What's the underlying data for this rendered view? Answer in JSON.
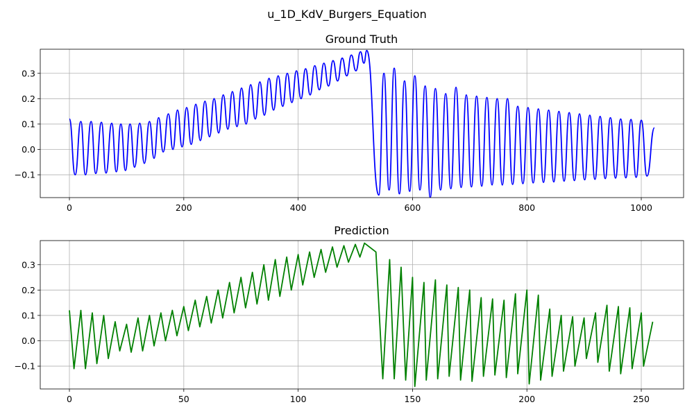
{
  "figure": {
    "title": "u_1D_KdV_Burgers_Equation",
    "background": "#ffffff"
  },
  "chart_data": [
    {
      "type": "line",
      "title": "Ground Truth",
      "xlabel": "",
      "ylabel": "",
      "xlim": [
        -51,
        1074
      ],
      "ylim": [
        -0.19,
        0.395
      ],
      "xticks": [
        0,
        200,
        400,
        600,
        800,
        1000
      ],
      "yticks": [
        -0.1,
        0.0,
        0.1,
        0.2,
        0.3
      ],
      "grid": true,
      "series": [
        {
          "color": "#0000ff",
          "x_start": 0,
          "x_end": 1023,
          "peaks": [
            [
              0,
              0.12
            ],
            [
              20,
              0.11
            ],
            [
              38,
              0.11
            ],
            [
              56,
              0.107
            ],
            [
              74,
              0.103
            ],
            [
              90,
              0.1
            ],
            [
              106,
              0.1
            ],
            [
              123,
              0.103
            ],
            [
              140,
              0.11
            ],
            [
              156,
              0.125
            ],
            [
              173,
              0.14
            ],
            [
              189,
              0.155
            ],
            [
              205,
              0.165
            ],
            [
              221,
              0.178
            ],
            [
              237,
              0.19
            ],
            [
              253,
              0.2
            ],
            [
              269,
              0.215
            ],
            [
              285,
              0.228
            ],
            [
              301,
              0.242
            ],
            [
              317,
              0.255
            ],
            [
              333,
              0.266
            ],
            [
              349,
              0.28
            ],
            [
              365,
              0.29
            ],
            [
              381,
              0.3
            ],
            [
              397,
              0.31
            ],
            [
              413,
              0.318
            ],
            [
              429,
              0.33
            ],
            [
              445,
              0.34
            ],
            [
              461,
              0.35
            ],
            [
              477,
              0.36
            ],
            [
              493,
              0.372
            ],
            [
              509,
              0.385
            ],
            [
              520,
              0.39
            ],
            [
              550,
              0.3
            ],
            [
              568,
              0.32
            ],
            [
              586,
              0.27
            ],
            [
              604,
              0.29
            ],
            [
              622,
              0.25
            ],
            [
              640,
              0.24
            ],
            [
              658,
              0.22
            ],
            [
              676,
              0.245
            ],
            [
              694,
              0.215
            ],
            [
              712,
              0.21
            ],
            [
              730,
              0.205
            ],
            [
              748,
              0.2
            ],
            [
              766,
              0.2
            ],
            [
              784,
              0.17
            ],
            [
              802,
              0.165
            ],
            [
              820,
              0.16
            ],
            [
              838,
              0.155
            ],
            [
              856,
              0.15
            ],
            [
              874,
              0.145
            ],
            [
              892,
              0.14
            ],
            [
              910,
              0.135
            ],
            [
              928,
              0.13
            ],
            [
              946,
              0.125
            ],
            [
              964,
              0.12
            ],
            [
              982,
              0.118
            ],
            [
              1000,
              0.115
            ]
          ],
          "troughs": [
            [
              10,
              -0.1
            ],
            [
              28,
              -0.1
            ],
            [
              46,
              -0.095
            ],
            [
              64,
              -0.093
            ],
            [
              82,
              -0.088
            ],
            [
              98,
              -0.083
            ],
            [
              114,
              -0.07
            ],
            [
              131,
              -0.055
            ],
            [
              148,
              -0.035
            ],
            [
              164,
              -0.01
            ],
            [
              181,
              0.0
            ],
            [
              197,
              0.01
            ],
            [
              213,
              0.02
            ],
            [
              229,
              0.035
            ],
            [
              245,
              0.05
            ],
            [
              261,
              0.065
            ],
            [
              277,
              0.08
            ],
            [
              293,
              0.09
            ],
            [
              309,
              0.1
            ],
            [
              325,
              0.12
            ],
            [
              341,
              0.135
            ],
            [
              357,
              0.155
            ],
            [
              373,
              0.17
            ],
            [
              389,
              0.185
            ],
            [
              405,
              0.2
            ],
            [
              421,
              0.215
            ],
            [
              437,
              0.235
            ],
            [
              453,
              0.25
            ],
            [
              469,
              0.27
            ],
            [
              485,
              0.29
            ],
            [
              501,
              0.31
            ],
            [
              515,
              0.34
            ],
            [
              541,
              -0.18
            ],
            [
              559,
              -0.16
            ],
            [
              577,
              -0.175
            ],
            [
              595,
              -0.165
            ],
            [
              613,
              -0.16
            ],
            [
              631,
              -0.19
            ],
            [
              649,
              -0.16
            ],
            [
              667,
              -0.155
            ],
            [
              685,
              -0.15
            ],
            [
              703,
              -0.148
            ],
            [
              721,
              -0.145
            ],
            [
              739,
              -0.14
            ],
            [
              757,
              -0.14
            ],
            [
              775,
              -0.138
            ],
            [
              793,
              -0.135
            ],
            [
              811,
              -0.132
            ],
            [
              829,
              -0.13
            ],
            [
              847,
              -0.128
            ],
            [
              865,
              -0.125
            ],
            [
              883,
              -0.123
            ],
            [
              901,
              -0.12
            ],
            [
              919,
              -0.118
            ],
            [
              937,
              -0.115
            ],
            [
              955,
              -0.113
            ],
            [
              973,
              -0.112
            ],
            [
              991,
              -0.11
            ],
            [
              1010,
              -0.105
            ]
          ],
          "end": [
            1023,
            0.085
          ]
        }
      ]
    },
    {
      "type": "line",
      "title": "Prediction",
      "xlabel": "",
      "ylabel": "",
      "xlim": [
        -12.75,
        268.5
      ],
      "ylim": [
        -0.19,
        0.395
      ],
      "xticks": [
        0,
        50,
        100,
        150,
        200,
        250
      ],
      "yticks": [
        -0.1,
        0.0,
        0.1,
        0.2,
        0.3
      ],
      "grid": true,
      "series": [
        {
          "color": "#008000",
          "x_start": 0,
          "x_end": 255,
          "peaks": [
            [
              0,
              0.12
            ],
            [
              5,
              0.12
            ],
            [
              10,
              0.11
            ],
            [
              15,
              0.1
            ],
            [
              20,
              0.075
            ],
            [
              25,
              0.065
            ],
            [
              30,
              0.09
            ],
            [
              35,
              0.1
            ],
            [
              40,
              0.11
            ],
            [
              45,
              0.12
            ],
            [
              50,
              0.135
            ],
            [
              55,
              0.16
            ],
            [
              60,
              0.175
            ],
            [
              65,
              0.2
            ],
            [
              70,
              0.23
            ],
            [
              75,
              0.25
            ],
            [
              80,
              0.27
            ],
            [
              85,
              0.3
            ],
            [
              90,
              0.32
            ],
            [
              95,
              0.33
            ],
            [
              100,
              0.34
            ],
            [
              105,
              0.35
            ],
            [
              110,
              0.36
            ],
            [
              115,
              0.37
            ],
            [
              120,
              0.375
            ],
            [
              125,
              0.38
            ],
            [
              129,
              0.385
            ],
            [
              140,
              0.32
            ],
            [
              145,
              0.29
            ],
            [
              150,
              0.25
            ],
            [
              155,
              0.23
            ],
            [
              160,
              0.24
            ],
            [
              165,
              0.22
            ],
            [
              170,
              0.21
            ],
            [
              175,
              0.2
            ],
            [
              180,
              0.17
            ],
            [
              185,
              0.165
            ],
            [
              190,
              0.16
            ],
            [
              195,
              0.185
            ],
            [
              200,
              0.2
            ],
            [
              205,
              0.18
            ],
            [
              210,
              0.125
            ],
            [
              215,
              0.1
            ],
            [
              220,
              0.095
            ],
            [
              225,
              0.09
            ],
            [
              230,
              0.11
            ],
            [
              235,
              0.14
            ],
            [
              240,
              0.135
            ],
            [
              245,
              0.13
            ],
            [
              250,
              0.11
            ],
            [
              255,
              0.075
            ]
          ],
          "troughs": [
            [
              2,
              -0.11
            ],
            [
              7,
              -0.11
            ],
            [
              12,
              -0.09
            ],
            [
              17,
              -0.07
            ],
            [
              22,
              -0.04
            ],
            [
              27,
              -0.045
            ],
            [
              32,
              -0.04
            ],
            [
              37,
              -0.02
            ],
            [
              42,
              0.0
            ],
            [
              47,
              0.02
            ],
            [
              52,
              0.04
            ],
            [
              57,
              0.055
            ],
            [
              62,
              0.07
            ],
            [
              67,
              0.09
            ],
            [
              72,
              0.11
            ],
            [
              77,
              0.13
            ],
            [
              82,
              0.145
            ],
            [
              87,
              0.16
            ],
            [
              92,
              0.175
            ],
            [
              97,
              0.2
            ],
            [
              102,
              0.22
            ],
            [
              107,
              0.25
            ],
            [
              112,
              0.27
            ],
            [
              117,
              0.29
            ],
            [
              122,
              0.31
            ],
            [
              127,
              0.33
            ],
            [
              134,
              0.35
            ],
            [
              137,
              -0.15
            ],
            [
              142,
              -0.15
            ],
            [
              147,
              -0.155
            ],
            [
              151,
              -0.18
            ],
            [
              156,
              -0.155
            ],
            [
              161,
              -0.15
            ],
            [
              166,
              -0.14
            ],
            [
              171,
              -0.155
            ],
            [
              176,
              -0.16
            ],
            [
              181,
              -0.14
            ],
            [
              186,
              -0.135
            ],
            [
              191,
              -0.145
            ],
            [
              196,
              -0.13
            ],
            [
              201,
              -0.17
            ],
            [
              206,
              -0.155
            ],
            [
              211,
              -0.14
            ],
            [
              216,
              -0.12
            ],
            [
              221,
              -0.1
            ],
            [
              226,
              -0.07
            ],
            [
              231,
              -0.085
            ],
            [
              236,
              -0.12
            ],
            [
              241,
              -0.13
            ],
            [
              246,
              -0.11
            ],
            [
              251,
              -0.1
            ]
          ],
          "end": [
            255,
            0.075
          ]
        }
      ]
    }
  ]
}
